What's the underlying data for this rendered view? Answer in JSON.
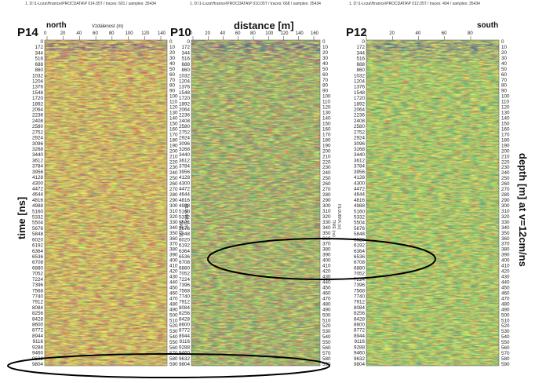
{
  "figure": {
    "left_axis_title": "time [ns]",
    "right_axis_title": "depth [m] at v=12cm/ns",
    "time_ticks": [
      "0",
      "172",
      "344",
      "516",
      "688",
      "860",
      "1032",
      "1204",
      "1376",
      "1548",
      "1720",
      "1892",
      "2064",
      "2236",
      "2408",
      "2580",
      "2752",
      "2924",
      "3096",
      "3268",
      "3440",
      "3612",
      "3784",
      "3956",
      "4128",
      "4300",
      "4472",
      "4644",
      "4816",
      "4988",
      "5160",
      "5332",
      "5504",
      "5676",
      "5848",
      "6020",
      "6192",
      "6364",
      "6536",
      "6708",
      "6880",
      "7052",
      "7224",
      "7396",
      "7568",
      "7740",
      "7912",
      "8084",
      "8256",
      "8428",
      "8600",
      "8772",
      "8944",
      "9116",
      "9288",
      "9460",
      "9632",
      "9804"
    ],
    "depth_ticks": [
      "0",
      "10",
      "20",
      "30",
      "40",
      "50",
      "60",
      "70",
      "80",
      "90",
      "100",
      "110",
      "120",
      "130",
      "140",
      "150",
      "160",
      "170",
      "180",
      "190",
      "200",
      "210",
      "220",
      "230",
      "240",
      "250",
      "260",
      "270",
      "280",
      "290",
      "300",
      "310",
      "320",
      "330",
      "340",
      "350",
      "360",
      "370",
      "380",
      "390",
      "400",
      "410",
      "420",
      "430",
      "440",
      "450",
      "460",
      "470",
      "480",
      "490",
      "500",
      "510",
      "520",
      "530",
      "540",
      "550",
      "560",
      "570",
      "580",
      "590"
    ]
  },
  "panels": [
    {
      "id": "P14",
      "label": "P14",
      "side_label": "north",
      "header": "1. D:\\1-Loza\\Hranice\\PROCDATA\\P 014.05T / traces: 601 / samples: 35434",
      "x_axis_title": "Vzdálenost (m)",
      "x_ticks": [
        "0",
        "20",
        "40",
        "60",
        "80",
        "100",
        "120",
        "140"
      ],
      "rot_label_1": "TIME (ns)",
      "rot_label_2": "HLOUBKA (m)"
    },
    {
      "id": "P10",
      "label": "P10",
      "side_label": "",
      "header": "1. D:\\1-Loza\\Hranice\\PROCDATA\\P 010.05T / traces: 668 / samples: 35434",
      "x_axis_title": "distance [m]",
      "x_ticks": [
        "0",
        "20",
        "40",
        "60",
        "80",
        "100",
        "120",
        "140",
        "160"
      ],
      "rot_label_1": "TIME (ns)",
      "rot_label_2": "HLOUBKA (m)"
    },
    {
      "id": "P12",
      "label": "P12",
      "side_label": "south",
      "header": "1. D:\\1-Loza\\Hranice\\PROCDATA\\P 012.05T / traces: 404 / samples: 35434",
      "x_axis_title": "",
      "x_ticks": [
        "0",
        "20",
        "40",
        "60",
        "80"
      ],
      "rot_label_1": "",
      "rot_label_2": ""
    }
  ],
  "colors": {
    "radar_base": "#d8e86a",
    "radar_bright": "#f2f25a",
    "radar_purple": "#8a3aa8",
    "radar_red": "#e23a4a",
    "radar_green": "#2fa85a",
    "radar_teal": "#1f9fa0",
    "radar_blue": "#2a2ab8",
    "ellipse": "#000000"
  }
}
